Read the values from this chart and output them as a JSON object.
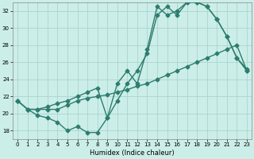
{
  "xlabel": "Humidex (Indice chaleur)",
  "bg_color": "#cceee8",
  "grid_color": "#aad4ce",
  "line_color": "#2e7d6e",
  "xlim": [
    -0.5,
    23.5
  ],
  "ylim": [
    17,
    33
  ],
  "yticks": [
    18,
    20,
    22,
    24,
    26,
    28,
    30,
    32
  ],
  "xticks": [
    0,
    1,
    2,
    3,
    4,
    5,
    6,
    7,
    8,
    9,
    10,
    11,
    12,
    13,
    14,
    15,
    16,
    17,
    18,
    19,
    20,
    21,
    22,
    23
  ],
  "line1_x": [
    0,
    1,
    2,
    3,
    4,
    5,
    6,
    7,
    8,
    9,
    10,
    11,
    12,
    13,
    14,
    15,
    16,
    17,
    18,
    19,
    20,
    21,
    22,
    23
  ],
  "line1_y": [
    21.5,
    20.5,
    19.8,
    19.5,
    19.0,
    18.0,
    18.5,
    17.8,
    17.8,
    19.5,
    21.5,
    23.5,
    25.0,
    27.0,
    31.5,
    32.5,
    31.5,
    33.0,
    33.0,
    32.5,
    31.0,
    29.0,
    26.5,
    25.0
  ],
  "line2_x": [
    0,
    1,
    2,
    3,
    4,
    5,
    6,
    7,
    8,
    9,
    10,
    11,
    12,
    13,
    14,
    15,
    16,
    17,
    18,
    19,
    20,
    21,
    22,
    23
  ],
  "line2_y": [
    21.5,
    20.5,
    20.5,
    20.5,
    20.5,
    21.0,
    21.5,
    21.8,
    22.0,
    22.2,
    22.5,
    22.8,
    23.2,
    23.5,
    24.0,
    24.5,
    25.0,
    25.5,
    26.0,
    26.5,
    27.0,
    27.5,
    28.0,
    25.0
  ],
  "line3_x": [
    0,
    1,
    2,
    3,
    4,
    5,
    6,
    7,
    8,
    9,
    10,
    11,
    12,
    13,
    14,
    15,
    16,
    17,
    18,
    19,
    20,
    21,
    22,
    23
  ],
  "line3_y": [
    21.5,
    20.5,
    20.5,
    20.8,
    21.2,
    21.5,
    22.0,
    22.5,
    23.0,
    19.5,
    23.5,
    25.0,
    23.5,
    27.5,
    32.5,
    31.5,
    32.0,
    33.0,
    33.0,
    32.5,
    31.0,
    29.0,
    26.5,
    25.2
  ],
  "marker": "D",
  "marker_size": 2.5,
  "line_width": 1.0
}
